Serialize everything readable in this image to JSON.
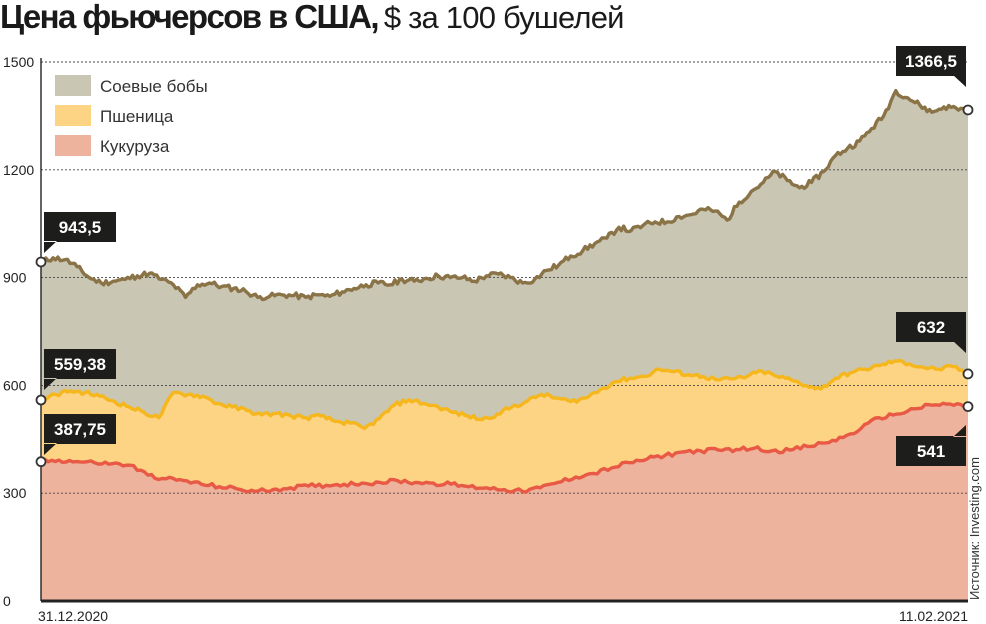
{
  "title_bold": "Цена фьючерсов в США,",
  "title_unit": "$ за 100 бушелей",
  "source": "Источник: Investing.com",
  "colors": {
    "soy_fill": "#c9c6b3",
    "soy_line": "#8a7346",
    "wheat_fill": "#fdd384",
    "wheat_line": "#f5b71c",
    "corn_fill": "#eeb39d",
    "corn_line": "#e85a45",
    "callout": "#1d1d1b"
  },
  "chart_data": {
    "type": "area",
    "title": "Цена фьючерсов в США, $ за 100 бушелей",
    "x_start_label": "31.12.2020",
    "x_end_label": "11.02.2021",
    "y_ticks": [
      0,
      300,
      600,
      900,
      1200,
      1500
    ],
    "ylim": [
      0,
      1500
    ],
    "grid": true,
    "legend_position": "top-left",
    "series": [
      {
        "name": "Соевые бобы",
        "start_label": "943,5",
        "end_label": "1366,5",
        "values": [
          943.5,
          955,
          950,
          930,
          900,
          885,
          890,
          895,
          905,
          912,
          895,
          880,
          845,
          880,
          885,
          875,
          870,
          862,
          845,
          848,
          852,
          850,
          845,
          852,
          848,
          860,
          870,
          880,
          885,
          880,
          895,
          890,
          898,
          905,
          900,
          900,
          890,
          905,
          910,
          900,
          885,
          895,
          920,
          935,
          960,
          975,
          995,
          1010,
          1040,
          1030,
          1045,
          1055,
          1055,
          1070,
          1075,
          1090,
          1085,
          1060,
          1110,
          1140,
          1165,
          1195,
          1170,
          1150,
          1165,
          1195,
          1240,
          1260,
          1280,
          1315,
          1350,
          1420,
          1400,
          1380,
          1360,
          1375,
          1372,
          1366.5
        ]
      },
      {
        "name": "Пшеница",
        "start_label": "559,38",
        "end_label": "632",
        "values": [
          559.38,
          575,
          585,
          580,
          570,
          555,
          540,
          525,
          510,
          580,
          575,
          570,
          550,
          540,
          530,
          518,
          522,
          515,
          510,
          515,
          500,
          495,
          480,
          508,
          545,
          560,
          550,
          540,
          525,
          515,
          505,
          520,
          540,
          555,
          575,
          565,
          555,
          565,
          588,
          610,
          620,
          625,
          645,
          638,
          630,
          625,
          615,
          618,
          625,
          640,
          625,
          615,
          600,
          590,
          620,
          635,
          645,
          655,
          668,
          660,
          650,
          645,
          652,
          632
        ]
      },
      {
        "name": "Кукуруза",
        "start_label": "387,75",
        "end_label": "541",
        "values": [
          387.75,
          392,
          388,
          385,
          382,
          378,
          350,
          340,
          335,
          325,
          318,
          312,
          305,
          310,
          315,
          320,
          322,
          325,
          328,
          330,
          335,
          330,
          328,
          325,
          318,
          315,
          310,
          305,
          315,
          330,
          345,
          355,
          370,
          385,
          395,
          405,
          415,
          418,
          420,
          422,
          425,
          418,
          420,
          430,
          440,
          455,
          480,
          510,
          520,
          535,
          545,
          548,
          541
        ]
      }
    ]
  }
}
